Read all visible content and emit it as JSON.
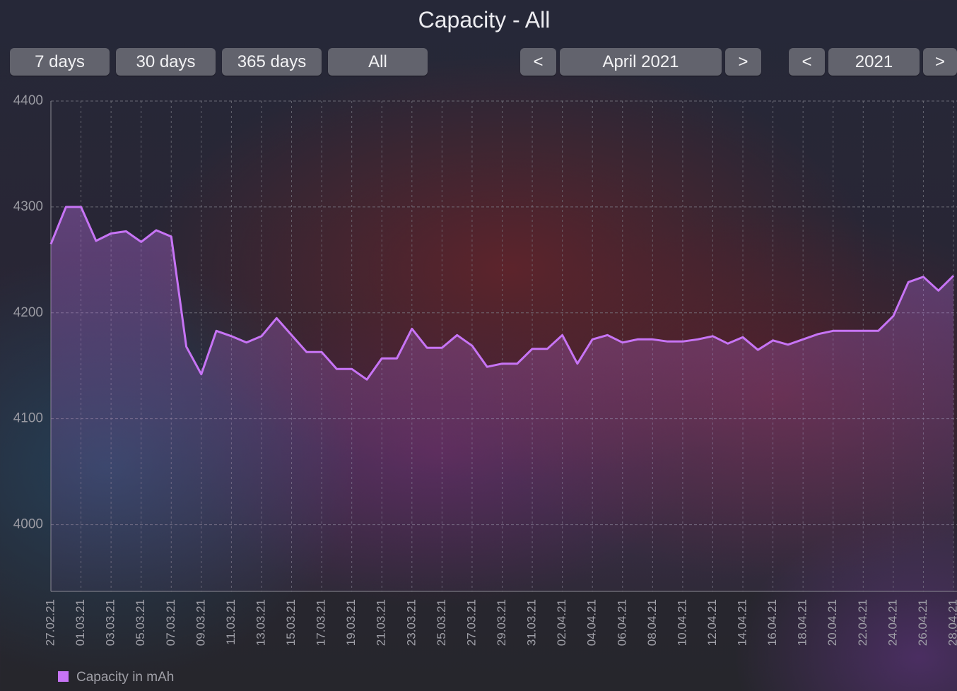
{
  "title": "Capacity - All",
  "controls": {
    "ranges": [
      "7 days",
      "30 days",
      "365 days",
      "All"
    ],
    "month_prev": "<",
    "month": "April 2021",
    "month_next": ">",
    "year_prev": "<",
    "year": "2021",
    "year_next": ">"
  },
  "chart_data": {
    "type": "line",
    "categories": [
      "27.02.21",
      null,
      "01.03.21",
      null,
      "03.03.21",
      null,
      "05.03.21",
      null,
      "07.03.21",
      null,
      "09.03.21",
      null,
      "11.03.21",
      null,
      "13.03.21",
      null,
      "15.03.21",
      null,
      "17.03.21",
      null,
      "19.03.21",
      null,
      "21.03.21",
      null,
      "23.03.21",
      null,
      "25.03.21",
      null,
      "27.03.21",
      null,
      "29.03.21",
      null,
      "31.03.21",
      null,
      "02.04.21",
      null,
      "04.04.21",
      null,
      "06.04.21",
      null,
      "08.04.21",
      null,
      "10.04.21",
      null,
      "12.04.21",
      null,
      "14.04.21",
      null,
      "16.04.21",
      null,
      "18.04.21",
      null,
      "20.04.21",
      null,
      "22.04.21",
      null,
      "24.04.21",
      null,
      "26.04.21",
      null,
      "28.04.21"
    ],
    "series": [
      {
        "name": "Capacity in mAh",
        "color": "#c774f5",
        "values": [
          4265,
          4300,
          4300,
          4268,
          4275,
          4277,
          4267,
          4278,
          4272,
          4168,
          4142,
          4183,
          4178,
          4172,
          4178,
          4195,
          4179,
          4163,
          4163,
          4147,
          4147,
          4137,
          4157,
          4157,
          4185,
          4167,
          4167,
          4179,
          4169,
          4149,
          4152,
          4152,
          4166,
          4166,
          4179,
          4152,
          4175,
          4179,
          4172,
          4175,
          4175,
          4173,
          4173,
          4175,
          4178,
          4171,
          4177,
          4165,
          4174,
          4170,
          4175,
          4180,
          4183,
          4183,
          4183,
          4183,
          4197,
          4229,
          4234,
          4221,
          4235
        ]
      }
    ],
    "ylim": [
      3937,
      4400
    ],
    "yticks": [
      4000,
      4100,
      4200,
      4300,
      4400
    ],
    "grid": true,
    "legend": "bottom-left"
  }
}
